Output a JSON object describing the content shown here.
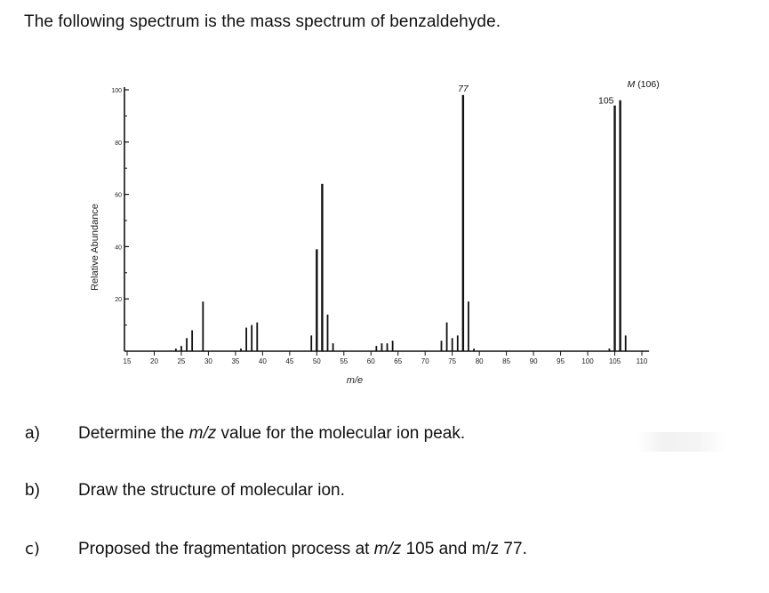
{
  "intro": "The following spectrum is the mass spectrum of benzaldehyde.",
  "questions": [
    {
      "letter": "a)",
      "pre": "Determine the ",
      "em": "m/z",
      "post": " value for the molecular ion peak."
    },
    {
      "letter": "b)",
      "pre": "Draw the structure of molecular ion.",
      "em": "",
      "post": ""
    },
    {
      "letter": "c)",
      "pre": "Proposed the fragmentation process at ",
      "em": "m/z",
      "post": " 105 and m/z 77."
    }
  ],
  "chart_data": {
    "type": "bar",
    "title": "",
    "xlabel": "m/e",
    "ylabel": "Relative Abundance",
    "xlim": [
      14,
      111
    ],
    "ylim": [
      0,
      100
    ],
    "xticks": [
      15,
      20,
      25,
      30,
      35,
      40,
      45,
      50,
      55,
      60,
      65,
      70,
      75,
      80,
      85,
      90,
      95,
      100,
      105,
      110
    ],
    "yticks": [
      20,
      40,
      60,
      80,
      100
    ],
    "peaks": [
      {
        "mz": 24,
        "abundance": 1
      },
      {
        "mz": 25,
        "abundance": 2
      },
      {
        "mz": 26,
        "abundance": 5
      },
      {
        "mz": 27,
        "abundance": 8
      },
      {
        "mz": 29,
        "abundance": 19
      },
      {
        "mz": 36,
        "abundance": 1
      },
      {
        "mz": 37,
        "abundance": 9
      },
      {
        "mz": 38,
        "abundance": 10
      },
      {
        "mz": 39,
        "abundance": 11
      },
      {
        "mz": 49,
        "abundance": 6
      },
      {
        "mz": 50,
        "abundance": 39
      },
      {
        "mz": 51,
        "abundance": 64
      },
      {
        "mz": 52,
        "abundance": 14
      },
      {
        "mz": 53,
        "abundance": 3
      },
      {
        "mz": 61,
        "abundance": 2
      },
      {
        "mz": 62,
        "abundance": 3
      },
      {
        "mz": 63,
        "abundance": 3
      },
      {
        "mz": 64,
        "abundance": 4
      },
      {
        "mz": 73,
        "abundance": 4
      },
      {
        "mz": 74,
        "abundance": 11
      },
      {
        "mz": 75,
        "abundance": 5
      },
      {
        "mz": 76,
        "abundance": 6
      },
      {
        "mz": 77,
        "abundance": 98
      },
      {
        "mz": 78,
        "abundance": 19
      },
      {
        "mz": 79,
        "abundance": 1
      },
      {
        "mz": 104,
        "abundance": 1
      },
      {
        "mz": 105,
        "abundance": 94
      },
      {
        "mz": 106,
        "abundance": 96
      },
      {
        "mz": 107,
        "abundance": 6
      }
    ],
    "annotations": [
      {
        "mz": 77,
        "label": "77"
      },
      {
        "mz": 105,
        "label": "105"
      },
      {
        "mz": 106,
        "label": "M (106)"
      }
    ]
  }
}
